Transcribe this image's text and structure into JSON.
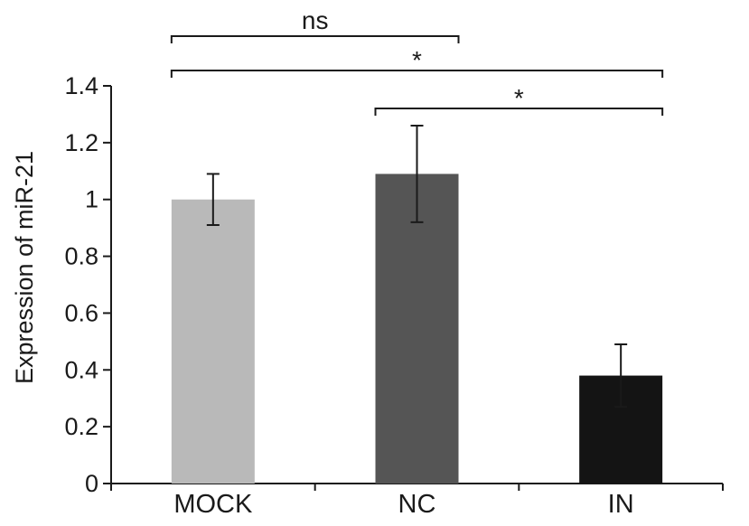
{
  "chart_data": {
    "type": "bar",
    "categories": [
      "MOCK",
      "NC",
      "IN"
    ],
    "values": [
      1.0,
      1.09,
      0.38
    ],
    "error": [
      0.09,
      0.17,
      0.11
    ],
    "colors": [
      "#b9b9b9",
      "#555555",
      "#141414"
    ],
    "ylabel": "Expression of miR-21",
    "xlabel": "",
    "title": "",
    "ylim": [
      0,
      1.4
    ],
    "yticks": [
      0,
      0.2,
      0.4,
      0.6,
      0.8,
      1,
      1.2,
      1.4
    ],
    "ytick_labels": [
      "0",
      "0.2",
      "0.4",
      "0.6",
      "0.8",
      "1",
      "1.2",
      "1.4"
    ],
    "grid": false,
    "significance": [
      {
        "from": "MOCK",
        "to": "NC",
        "label": "ns"
      },
      {
        "from": "MOCK",
        "to": "IN",
        "label": "*"
      },
      {
        "from": "NC",
        "to": "IN",
        "label": "*"
      }
    ]
  }
}
